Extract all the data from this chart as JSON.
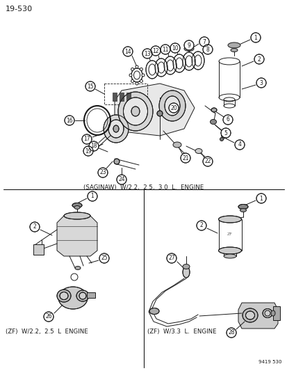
{
  "page_number": "19-530",
  "catalog_number": "9419 530",
  "background_color": "#ffffff",
  "line_color": "#1a1a1a",
  "top_label": "(SAGINAW)  W/2.2,  2.5,  3.0  L.  ENGINE",
  "bot_left_label": "(ZF)  W/2.2,  2.5  L  ENGINE",
  "bot_right_label": "(ZF)  W/3.3  L.  ENGINE",
  "figsize": [
    4.14,
    5.33
  ],
  "dpi": 100,
  "gray": "#666666",
  "lightgray": "#aaaaaa"
}
